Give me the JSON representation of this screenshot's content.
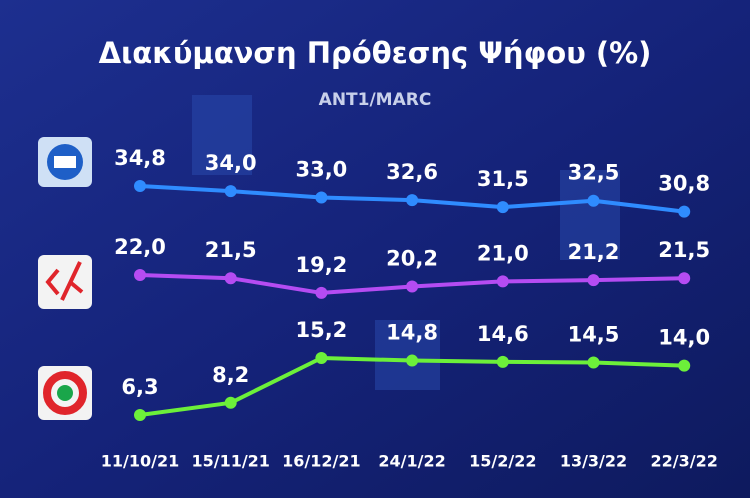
{
  "chart_data": {
    "type": "line",
    "title": "Διακύμανση Πρόθεσης Ψήφου (%)",
    "subtitle": "ANT1/MARC",
    "categories": [
      "11/10/21",
      "15/11/21",
      "16/12/21",
      "24/1/22",
      "15/2/22",
      "13/3/22",
      "22/3/22"
    ],
    "series": [
      {
        "color": "#2f8cff",
        "values": [
          34.8,
          34.0,
          33.0,
          32.6,
          31.5,
          32.5,
          30.8
        ],
        "value_labels": [
          "34,8",
          "34,0",
          "33,0",
          "32,6",
          "31,5",
          "32,5",
          "30,8"
        ]
      },
      {
        "color": "#b54cf2",
        "values": [
          22.0,
          21.5,
          19.2,
          20.2,
          21.0,
          21.2,
          21.5
        ],
        "value_labels": [
          "22,0",
          "21,5",
          "19,2",
          "20,2",
          "21,0",
          "21,2",
          "21,5"
        ]
      },
      {
        "color": "#6cf03a",
        "values": [
          6.3,
          8.2,
          15.2,
          14.8,
          14.6,
          14.5,
          14.0
        ],
        "value_labels": [
          "6,3",
          "8,2",
          "15,2",
          "14,8",
          "14,6",
          "14,5",
          "14,0"
        ]
      }
    ]
  }
}
